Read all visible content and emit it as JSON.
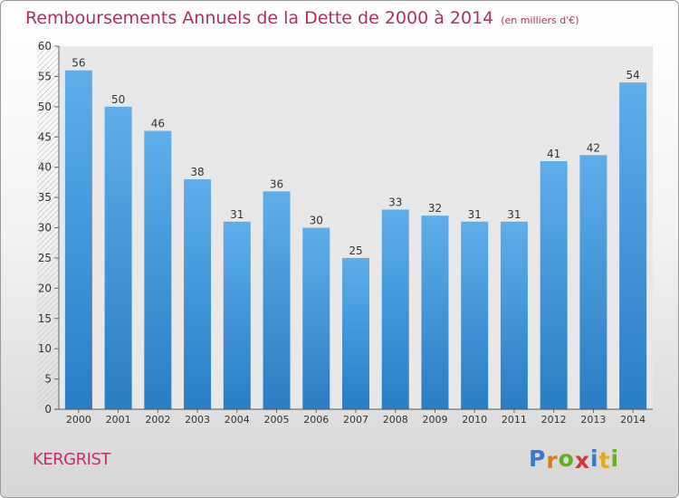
{
  "chart_data": {
    "type": "bar",
    "title": "Remboursements Annuels de la Dette de 2000 à 2014",
    "subtitle": "(en milliers d'€)",
    "categories": [
      "2000",
      "2001",
      "2002",
      "2003",
      "2004",
      "2005",
      "2006",
      "2007",
      "2008",
      "2009",
      "2010",
      "2011",
      "2012",
      "2013",
      "2014"
    ],
    "values": [
      56,
      50,
      46,
      38,
      31,
      36,
      30,
      25,
      33,
      32,
      31,
      31,
      41,
      42,
      54
    ],
    "ylim": [
      0,
      60
    ],
    "yticks": [
      0,
      5,
      10,
      15,
      20,
      25,
      30,
      35,
      40,
      45,
      50,
      55,
      60
    ],
    "xlabel": "",
    "ylabel": "",
    "grid": false,
    "bar_color": "#3d8fd6"
  },
  "location": "KERGRIST",
  "logo": {
    "letters": [
      "P",
      "r",
      "o",
      "x",
      "i",
      "t",
      "i"
    ],
    "colors": [
      "#3a78c8",
      "#e07a20",
      "#6aaa2a",
      "#d23a3a",
      "#3a78c8",
      "#e8a81c",
      "#6aaa2a"
    ]
  }
}
